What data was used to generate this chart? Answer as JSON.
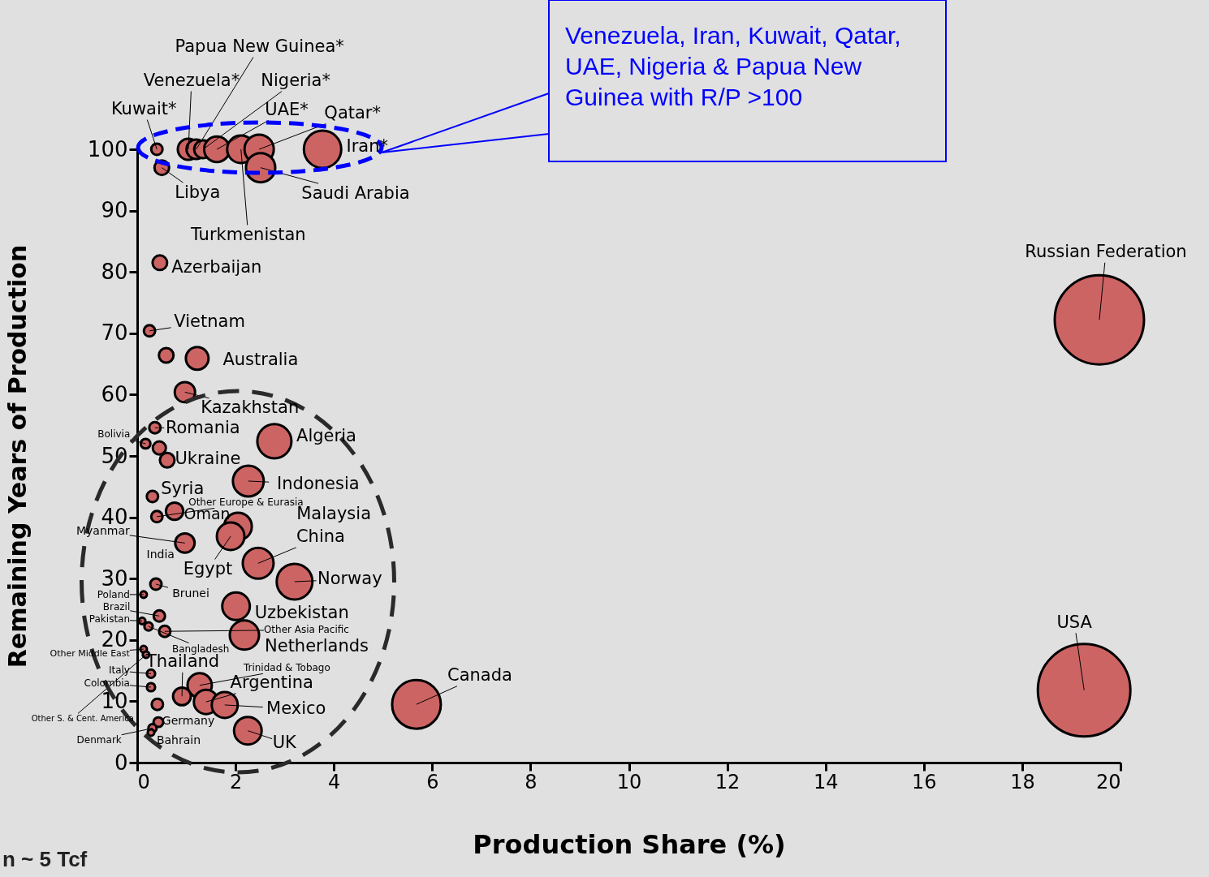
{
  "chart_data": {
    "type": "bubble",
    "xlabel": "Production Share (%)",
    "ylabel": "Remaining Years of Production",
    "xlim": [
      0,
      20
    ],
    "ylim": [
      0,
      100
    ],
    "xticks": [
      0,
      2,
      4,
      6,
      8,
      10,
      12,
      14,
      16,
      18,
      20
    ],
    "yticks": [
      0,
      10,
      20,
      30,
      40,
      50,
      60,
      70,
      80,
      90,
      100
    ],
    "x": [
      0.4,
      0.5,
      1.04,
      1.2,
      1.34,
      1.62,
      2.11,
      2.48,
      2.51,
      3.77,
      0.46,
      0.25,
      0.59,
      1.22,
      0.97,
      0.36,
      0.17,
      0.45,
      0.61,
      2.79,
      2.26,
      0.31,
      0.4,
      0.76,
      2.05,
      1.9,
      0.97,
      2.46,
      3.2,
      0.38,
      0.13,
      2.01,
      0.45,
      0.1,
      0.23,
      0.56,
      2.18,
      0.13,
      0.18,
      0.28,
      0.28,
      1.27,
      0.91,
      1.4,
      1.78,
      0.41,
      0.43,
      0.31,
      0.28,
      2.25,
      5.68,
      19.57,
      19.26
    ],
    "series": [
      {
        "color": "#cd6464",
        "values": [
          100,
          97,
          100,
          100,
          100,
          100,
          100,
          100,
          97,
          100,
          81.5,
          70.4,
          66.4,
          65.9,
          60.4,
          54.6,
          52,
          51.3,
          49.3,
          52.4,
          45.9,
          43.4,
          40.1,
          41,
          38.5,
          36.9,
          35.8,
          32.5,
          29.5,
          29.1,
          27.4,
          25.5,
          23.9,
          23.1,
          22.2,
          21.4,
          20.8,
          18.5,
          17.6,
          14.5,
          12.3,
          12.6,
          10.8,
          9.9,
          9.4,
          9.5,
          6.6,
          5.6,
          4.9,
          5.2,
          9.5,
          72.2,
          11.8
        ],
        "sizes": [
          0.015,
          0.025,
          0.052,
          0.044,
          0.037,
          0.076,
          0.089,
          0.1,
          0.1,
          0.163,
          0.025,
          0.015,
          0.025,
          0.06,
          0.048,
          0.015,
          0.011,
          0.02,
          0.025,
          0.136,
          0.111,
          0.015,
          0.015,
          0.035,
          0.089,
          0.089,
          0.044,
          0.111,
          0.149,
          0.015,
          0.005,
          0.089,
          0.015,
          0.005,
          0.008,
          0.015,
          0.1,
          0.005,
          0.005,
          0.008,
          0.008,
          0.069,
          0.037,
          0.069,
          0.079,
          0.015,
          0.011,
          0.008,
          0.005,
          0.089,
          0.277,
          0.93,
          1
        ]
      }
    ],
    "annotations": [
      {
        "text": "Kuwait*",
        "x": 0.4,
        "y": 100
      },
      {
        "text": "Venezuela*",
        "x": 1.04,
        "y": 100
      },
      {
        "text": "Papua New Guinea*",
        "x": 1.2,
        "y": 100
      },
      {
        "text": "Nigeria*",
        "x": 1.34,
        "y": 100
      },
      {
        "text": "UAE*",
        "x": 1.62,
        "y": 100
      },
      {
        "text": "Qatar*",
        "x": 2.48,
        "y": 100
      },
      {
        "text": "Iran*",
        "x": 3.77,
        "y": 100
      },
      {
        "text": "Libya",
        "x": 0.5,
        "y": 97
      },
      {
        "text": "Saudi Arabia",
        "x": 2.51,
        "y": 97
      },
      {
        "text": "Turkmenistan",
        "x": 2.11,
        "y": 100
      },
      {
        "text": "Azerbaijan",
        "x": 0.46,
        "y": 81.5
      },
      {
        "text": "Vietnam",
        "x": 0.25,
        "y": 70.4
      },
      {
        "text": "Australia",
        "x": 1.22,
        "y": 65.9
      },
      {
        "text": "Kazakhstan",
        "x": 0.97,
        "y": 60.4
      },
      {
        "text": "Romania",
        "x": 0.36,
        "y": 54.6
      },
      {
        "text": "Bolivia",
        "x": 0.17,
        "y": 52
      },
      {
        "text": "Ukraine",
        "x": 0.61,
        "y": 49.3
      },
      {
        "text": "Algeria",
        "x": 2.79,
        "y": 52.4
      },
      {
        "text": "Indonesia",
        "x": 2.26,
        "y": 45.9
      },
      {
        "text": "Syria",
        "x": 0.31,
        "y": 43.4
      },
      {
        "text": "Other Europe & Eurasia",
        "x": 0.4,
        "y": 40.1
      },
      {
        "text": "Oman",
        "x": 0.76,
        "y": 41
      },
      "Malaysia",
      {
        "text": "Myanmar",
        "x": 0.97,
        "y": 35.8
      },
      {
        "text": "India",
        "x": 0.97,
        "y": 35.8
      },
      {
        "text": "Egypt",
        "x": 1.9,
        "y": 36.9
      },
      {
        "text": "China",
        "x": 2.46,
        "y": 32.5
      },
      {
        "text": "Norway",
        "x": 3.2,
        "y": 29.5
      },
      {
        "text": "Brunei",
        "x": 0.38,
        "y": 29.1
      },
      {
        "text": "Poland",
        "x": 0.13,
        "y": 27.4
      },
      {
        "text": "Uzbekistan",
        "x": 2.01,
        "y": 25.5
      },
      {
        "text": "Brazil",
        "x": 0.45,
        "y": 23.9
      },
      {
        "text": "Pakistan",
        "x": 0.1,
        "y": 23.1
      },
      {
        "text": "Bangladesh",
        "x": 0.23,
        "y": 22.2
      },
      {
        "text": "Other Asia Pacific",
        "x": 0.56,
        "y": 21.4
      },
      {
        "text": "Netherlands",
        "x": 2.18,
        "y": 20.8
      },
      {
        "text": "Other Middle East",
        "x": 0.13,
        "y": 18.5
      },
      {
        "text": "Other S. & Cent. America",
        "x": 0.18,
        "y": 17.6
      },
      {
        "text": "Thailand",
        "x": 0.91,
        "y": 10.8
      },
      {
        "text": "Italy",
        "x": 0.28,
        "y": 14.5
      },
      {
        "text": "Colombia",
        "x": 0.28,
        "y": 12.3
      },
      {
        "text": "Trinidad & Tobago",
        "x": 1.27,
        "y": 12.6
      },
      {
        "text": "Argentina",
        "x": 1.4,
        "y": 9.9
      },
      {
        "text": "Mexico",
        "x": 1.78,
        "y": 9.4
      },
      {
        "text": "Germany",
        "x": 0.43,
        "y": 6.6
      },
      {
        "text": "Denmark",
        "x": 0.31,
        "y": 5.6
      },
      {
        "text": "Bahrain",
        "x": 0.28,
        "y": 4.9
      },
      {
        "text": "UK",
        "x": 2.25,
        "y": 5.2
      },
      {
        "text": "Canada",
        "x": 5.68,
        "y": 9.5
      },
      {
        "text": "Russian Federation",
        "x": 19.57,
        "y": 72.2
      },
      {
        "text": "USA",
        "x": 19.26,
        "y": 11.8
      },
      "Venezuela, Iran, Kuwait, Qatar, UAE, Nigeria &  Papua New Guinea with R/P >100",
      "n ~ 5 Tcf"
    ]
  }
}
